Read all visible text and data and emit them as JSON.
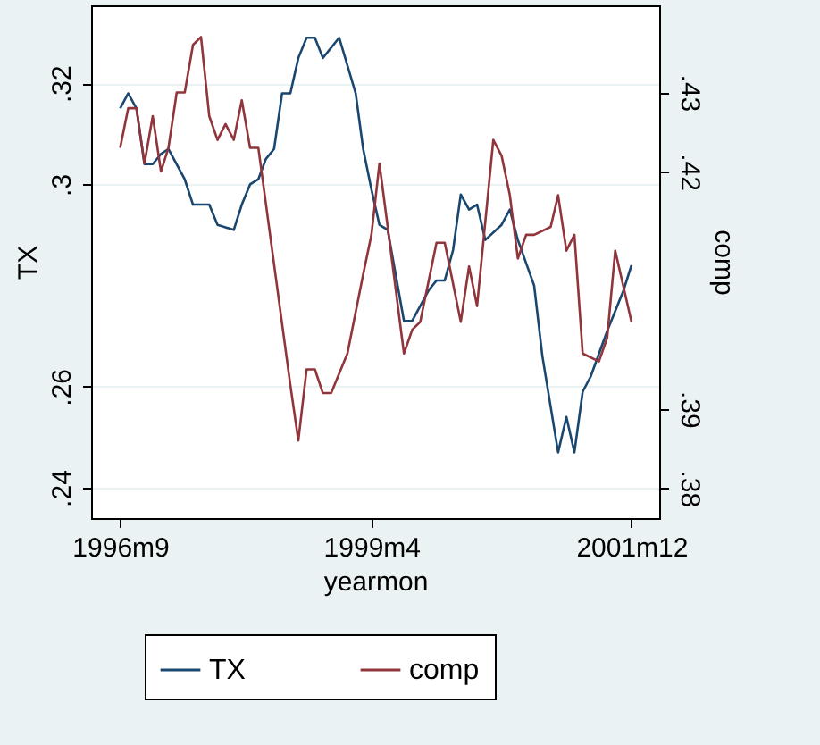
{
  "chart_data": {
    "type": "line",
    "xlabel": "yearmon",
    "ylabel": "TX",
    "y2label": "comp",
    "xlim": [
      "1996-05-15",
      "2002-03-15"
    ],
    "xticks": [
      {
        "value": "1996-09",
        "label": "1996m9"
      },
      {
        "value": "1999-04",
        "label": "1999m4"
      },
      {
        "value": "2001-12",
        "label": "2001m12"
      }
    ],
    "ylim": [
      0.234,
      0.3354
    ],
    "yticks": [
      {
        "value": 0.24,
        "label": ".24"
      },
      {
        "value": 0.26,
        "label": ".26"
      },
      {
        "value": 0.3,
        "label": ".3"
      },
      {
        "value": 0.32,
        "label": ".32"
      }
    ],
    "y2lim": [
      0.3762,
      0.441
    ],
    "y2ticks": [
      {
        "value": 0.38,
        "label": ".38"
      },
      {
        "value": 0.39,
        "label": ".39"
      },
      {
        "value": 0.42,
        "label": ".42"
      },
      {
        "value": 0.43,
        "label": ".43"
      }
    ],
    "grid": "y",
    "legend": "bottom",
    "line_style": "solid",
    "series": [
      {
        "name": "TX",
        "color": "#1a476f",
        "x": [
          "1996-09",
          "1996-10",
          "1996-11",
          "1996-12",
          "1997-01",
          "1997-02",
          "1997-03",
          "1997-05",
          "1997-06",
          "1997-08",
          "1997-09",
          "1997-11",
          "1997-12",
          "1998-01",
          "1998-02",
          "1998-03",
          "1998-04",
          "1998-05",
          "1998-06",
          "1998-07",
          "1998-08",
          "1998-09",
          "1998-10",
          "1998-12",
          "1999-02",
          "1999-03",
          "1999-04",
          "1999-05",
          "1999-06",
          "1999-08",
          "1999-09",
          "1999-11",
          "1999-12",
          "2000-01",
          "2000-02",
          "2000-03",
          "2000-04",
          "2000-05",
          "2000-06",
          "2000-08",
          "2000-09",
          "2000-10",
          "2000-12",
          "2001-01",
          "2001-03",
          "2001-04",
          "2001-05",
          "2001-06",
          "2001-07",
          "2001-09",
          "2001-11",
          "2001-12"
        ],
        "values": [
          0.315,
          0.318,
          0.315,
          0.304,
          0.304,
          0.306,
          0.307,
          0.301,
          0.296,
          0.296,
          0.292,
          0.291,
          0.296,
          0.3,
          0.301,
          0.305,
          0.307,
          0.318,
          0.318,
          0.325,
          0.329,
          0.329,
          0.325,
          0.329,
          0.318,
          0.307,
          0.299,
          0.292,
          0.291,
          0.273,
          0.273,
          0.279,
          0.281,
          0.281,
          0.287,
          0.298,
          0.295,
          0.296,
          0.289,
          0.292,
          0.295,
          0.289,
          0.28,
          0.266,
          0.247,
          0.254,
          0.247,
          0.259,
          0.262,
          0.271,
          0.279,
          0.284
        ]
      },
      {
        "name": "comp",
        "color": "#90353b",
        "axis": "y2",
        "x": [
          "1996-09",
          "1996-10",
          "1996-11",
          "1996-12",
          "1997-01",
          "1997-02",
          "1997-03",
          "1997-04",
          "1997-05",
          "1997-06",
          "1997-07",
          "1997-08",
          "1997-09",
          "1997-10",
          "1997-11",
          "1997-12",
          "1998-01",
          "1998-02",
          "1998-03",
          "1998-06",
          "1998-07",
          "1998-08",
          "1998-09",
          "1998-10",
          "1998-11",
          "1999-01",
          "1999-03",
          "1999-04",
          "1999-05",
          "1999-06",
          "1999-08",
          "1999-09",
          "1999-10",
          "1999-12",
          "2000-01",
          "2000-03",
          "2000-04",
          "2000-05",
          "2000-07",
          "2000-08",
          "2000-09",
          "2000-10",
          "2000-11",
          "2000-12",
          "2001-02",
          "2001-03",
          "2001-04",
          "2001-05",
          "2001-06",
          "2001-08",
          "2001-09",
          "2001-10",
          "2001-12"
        ],
        "values": [
          0.423,
          0.428,
          0.428,
          0.421,
          0.427,
          0.42,
          0.423,
          0.43,
          0.43,
          0.436,
          0.437,
          0.427,
          0.424,
          0.426,
          0.424,
          0.429,
          0.423,
          0.423,
          0.416,
          0.393,
          0.386,
          0.395,
          0.395,
          0.392,
          0.392,
          0.397,
          0.407,
          0.412,
          0.421,
          0.413,
          0.397,
          0.4,
          0.401,
          0.411,
          0.411,
          0.401,
          0.408,
          0.403,
          0.424,
          0.422,
          0.417,
          0.409,
          0.412,
          0.412,
          0.413,
          0.417,
          0.41,
          0.412,
          0.397,
          0.396,
          0.399,
          0.41,
          0.401
        ]
      }
    ]
  }
}
